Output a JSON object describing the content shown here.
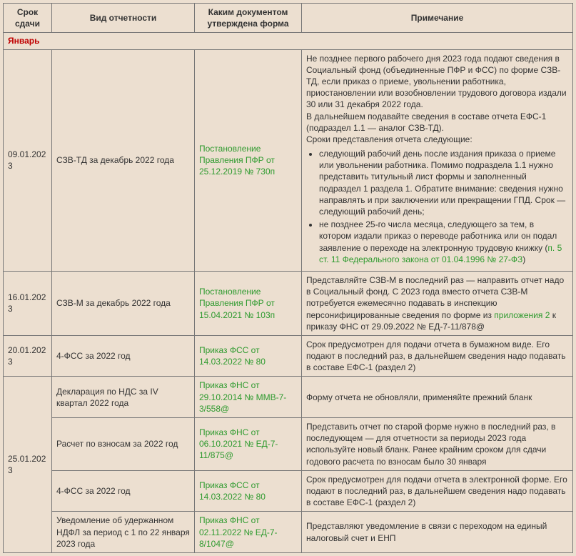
{
  "colors": {
    "background": "#ecdfd0",
    "border": "#777777",
    "link": "#2e9a2e",
    "month_label": "#c00000",
    "text": "#333333"
  },
  "headers": {
    "col1": "Срок сдачи",
    "col2": "Вид отчетности",
    "col3": "Каким документом утверждена форма",
    "col4": "Примечание"
  },
  "month_label": "Январь",
  "rows": [
    {
      "date": "09.01.2023",
      "report": "СЗВ-ТД за декабрь 2022 года",
      "doc_link": "Постановление Правления ПФР от 25.12.2019 № 730п",
      "note_intro_p1": "Не позднее первого рабочего дня 2023 года подают сведения в Социальный фонд (объединенные ПФР и ФСС) по форме СЗВ-ТД, если приказ о приеме, увольнении работника, приостановлении или возобновлении трудового договора издали 30 или 31 декабря 2022 года.",
      "note_intro_p2": "В дальнейшем подавайте сведения в составе отчета ЕФС-1 (подраздел 1.1 — аналог СЗВ-ТД).",
      "note_intro_p3": "Сроки представления отчета следующие:",
      "bullet1": "следующий рабочий день после издания приказа о приеме или увольнении работника. Помимо подраздела 1.1 нужно представить титульный лист формы и заполненный подраздел 1 раздела 1. Обратите внимание: сведения нужно направлять и при заключении или прекращении ГПД. Срок — следующий рабочий день;",
      "bullet2_pre": "не позднее 25-го числа месяца, следующего за тем, в котором издали приказ о переводе работника или он подал заявление о переходе на электронную трудовую книжку (",
      "bullet2_link": "п. 5 ст. 11 Федерального закона от 01.04.1996 № 27-ФЗ",
      "bullet2_post": ")"
    },
    {
      "date": "16.01.2023",
      "report": "СЗВ-М за декабрь 2022 года",
      "doc_link": "Постановление Правления ПФР от 15.04.2021 № 103п",
      "note_pre": "Представляйте СЗВ-М в последний раз — направить отчет надо в Социальный фонд. С 2023 года вместо отчета СЗВ-М потребуется ежемесячно подавать в инспекцию персонифицированные сведения по форме из ",
      "note_link": "приложения 2",
      "note_post": " к приказу ФНС от 29.09.2022 № ЕД-7-11/878@"
    },
    {
      "date": "20.01.2023",
      "report": "4-ФСС за 2022 год",
      "doc_link": "Приказ ФСС от 14.03.2022 № 80",
      "note": "Срок предусмотрен для подачи отчета в бумажном виде. Его подают в последний раз, в дальнейшем сведения надо подавать в составе ЕФС-1 (раздел 2)"
    },
    {
      "date": "25.01.2023",
      "sub": [
        {
          "report": "Декларация по НДС за IV квартал 2022 года",
          "doc_link": "Приказ ФНС от 29.10.2014 № ММВ-7-3/558@",
          "note": "Форму отчета не обновляли, применяйте прежний бланк"
        },
        {
          "report": "Расчет по взносам за 2022 год",
          "doc_link": "Приказ ФНС от 06.10.2021 № ЕД-7-11/875@",
          "note": "Представить отчет по старой форме нужно в последний раз, в последующем — для отчетности за периоды 2023 года используйте новый бланк. Ранее крайним сроком для сдачи годового расчета по взносам было 30 января"
        },
        {
          "report": "4-ФСС за 2022 год",
          "doc_link": "Приказ ФСС от 14.03.2022 № 80",
          "note": "Срок предусмотрен для подачи отчета в электронной форме. Его подают в последний раз, в дальнейшем сведения надо подавать в составе ЕФС-1 (раздел 2)"
        },
        {
          "report": "Уведомление об удержанном НДФЛ за период с 1 по 22 января 2023 года",
          "doc_link": "Приказ ФНС от 02.11.2022 № ЕД-7-8/1047@",
          "note": "Представляют уведомление в связи с переходом на единый налоговый счет и ЕНП"
        }
      ]
    }
  ]
}
